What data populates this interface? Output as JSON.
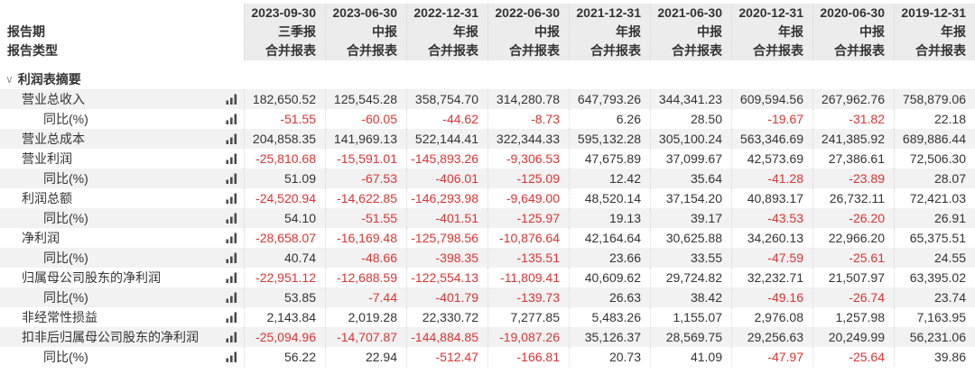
{
  "colors": {
    "negative_text": "#e03232",
    "value_text": "#333333",
    "header_text": "#333333",
    "row_stripe": "#f2f2f2",
    "header_background": "#ececec"
  },
  "header": {
    "period_row_label": "报告期",
    "type_row_label": "报告类型",
    "dates": [
      "2023-09-30",
      "2023-06-30",
      "2022-12-31",
      "2022-06-30",
      "2021-12-31",
      "2021-06-30",
      "2020-12-31",
      "2020-06-30",
      "2019-12-31"
    ],
    "periods": [
      "三季报",
      "中报",
      "年报",
      "中报",
      "年报",
      "中报",
      "年报",
      "中报",
      "年报"
    ],
    "types": [
      "合并报表",
      "合并报表",
      "合并报表",
      "合并报表",
      "合并报表",
      "合并报表",
      "合并报表",
      "合并报表",
      "合并报表"
    ]
  },
  "section": {
    "collapse_glyph": "∨",
    "title": "利润表摘要"
  },
  "rows": [
    {
      "label": "营业总收入",
      "indent": 1,
      "values": [
        "182,650.52",
        "125,545.28",
        "358,754.70",
        "314,280.78",
        "647,793.26",
        "344,341.23",
        "609,594.56",
        "267,962.76",
        "758,879.06"
      ]
    },
    {
      "label": "同比(%)",
      "indent": 2,
      "values": [
        "-51.55",
        "-60.05",
        "-44.62",
        "-8.73",
        "6.26",
        "28.50",
        "-19.67",
        "-31.82",
        "22.18"
      ]
    },
    {
      "label": "营业总成本",
      "indent": 1,
      "values": [
        "204,858.35",
        "141,969.13",
        "522,144.41",
        "322,344.33",
        "595,132.28",
        "305,100.24",
        "563,346.69",
        "241,385.92",
        "689,886.44"
      ]
    },
    {
      "label": "营业利润",
      "indent": 1,
      "values": [
        "-25,810.68",
        "-15,591.01",
        "-145,893.26",
        "-9,306.53",
        "47,675.89",
        "37,099.67",
        "42,573.69",
        "27,386.61",
        "72,506.30"
      ]
    },
    {
      "label": "同比(%)",
      "indent": 2,
      "values": [
        "51.09",
        "-67.53",
        "-406.01",
        "-125.09",
        "12.42",
        "35.64",
        "-41.28",
        "-23.89",
        "28.07"
      ]
    },
    {
      "label": "利润总额",
      "indent": 1,
      "values": [
        "-24,520.94",
        "-14,622.85",
        "-146,293.98",
        "-9,649.00",
        "48,520.14",
        "37,154.20",
        "40,893.17",
        "26,732.11",
        "72,421.03"
      ]
    },
    {
      "label": "同比(%)",
      "indent": 2,
      "values": [
        "54.10",
        "-51.55",
        "-401.51",
        "-125.97",
        "19.13",
        "39.17",
        "-43.53",
        "-26.20",
        "26.91"
      ]
    },
    {
      "label": "净利润",
      "indent": 1,
      "values": [
        "-28,658.07",
        "-16,169.48",
        "-125,798.56",
        "-10,876.64",
        "42,164.64",
        "30,625.88",
        "34,260.13",
        "22,966.20",
        "65,375.51"
      ]
    },
    {
      "label": "同比(%)",
      "indent": 2,
      "values": [
        "40.74",
        "-48.66",
        "-398.35",
        "-135.51",
        "23.66",
        "33.55",
        "-47.59",
        "-25.61",
        "24.55"
      ]
    },
    {
      "label": "归属母公司股东的净利润",
      "indent": 1,
      "values": [
        "-22,951.12",
        "-12,688.59",
        "-122,554.13",
        "-11,809.41",
        "40,609.62",
        "29,724.82",
        "32,232.71",
        "21,507.97",
        "63,395.02"
      ]
    },
    {
      "label": "同比(%)",
      "indent": 2,
      "values": [
        "53.85",
        "-7.44",
        "-401.79",
        "-139.73",
        "26.63",
        "38.42",
        "-49.16",
        "-26.74",
        "23.74"
      ]
    },
    {
      "label": "非经常性损益",
      "indent": 1,
      "values": [
        "2,143.84",
        "2,019.28",
        "22,330.72",
        "7,277.85",
        "5,483.26",
        "1,155.07",
        "2,976.08",
        "1,257.98",
        "7,163.95"
      ]
    },
    {
      "label": "扣非后归属母公司股东的净利润",
      "indent": 1,
      "values": [
        "-25,094.96",
        "-14,707.87",
        "-144,884.85",
        "-19,087.26",
        "35,126.37",
        "28,569.75",
        "29,256.63",
        "20,249.99",
        "56,231.06"
      ]
    },
    {
      "label": "同比(%)",
      "indent": 2,
      "values": [
        "56.22",
        "22.94",
        "-512.47",
        "-166.81",
        "20.73",
        "41.09",
        "-47.97",
        "-25.64",
        "39.86"
      ]
    }
  ]
}
